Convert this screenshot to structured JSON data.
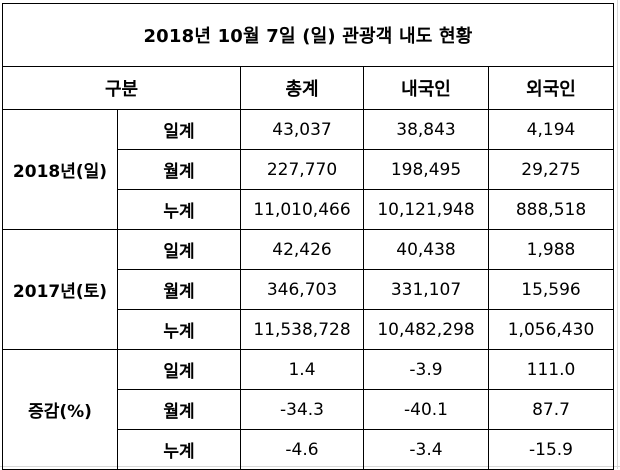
{
  "title": "2018년 10월 7일 (일) 관광객 내도 현황",
  "header": {
    "category": "구분",
    "columns": [
      "총계",
      "내국인",
      "외국인"
    ]
  },
  "groups": [
    {
      "label": "2018년(일)",
      "rows": [
        {
          "label": "일계",
          "values": [
            "43,037",
            "38,843",
            "4,194"
          ]
        },
        {
          "label": "월계",
          "values": [
            "227,770",
            "198,495",
            "29,275"
          ]
        },
        {
          "label": "누계",
          "values": [
            "11,010,466",
            "10,121,948",
            "888,518"
          ]
        }
      ]
    },
    {
      "label": "2017년(토)",
      "rows": [
        {
          "label": "일계",
          "values": [
            "42,426",
            "40,438",
            "1,988"
          ]
        },
        {
          "label": "월계",
          "values": [
            "346,703",
            "331,107",
            "15,596"
          ]
        },
        {
          "label": "누계",
          "values": [
            "11,538,728",
            "10,482,298",
            "1,056,430"
          ]
        }
      ]
    },
    {
      "label": "증감(%)",
      "rows": [
        {
          "label": "일계",
          "values": [
            "1.4",
            "-3.9",
            "111.0"
          ]
        },
        {
          "label": "월계",
          "values": [
            "-34.3",
            "-40.1",
            "87.7"
          ]
        },
        {
          "label": "누계",
          "values": [
            "-4.6",
            "-3.4",
            "-15.9"
          ]
        }
      ]
    }
  ]
}
